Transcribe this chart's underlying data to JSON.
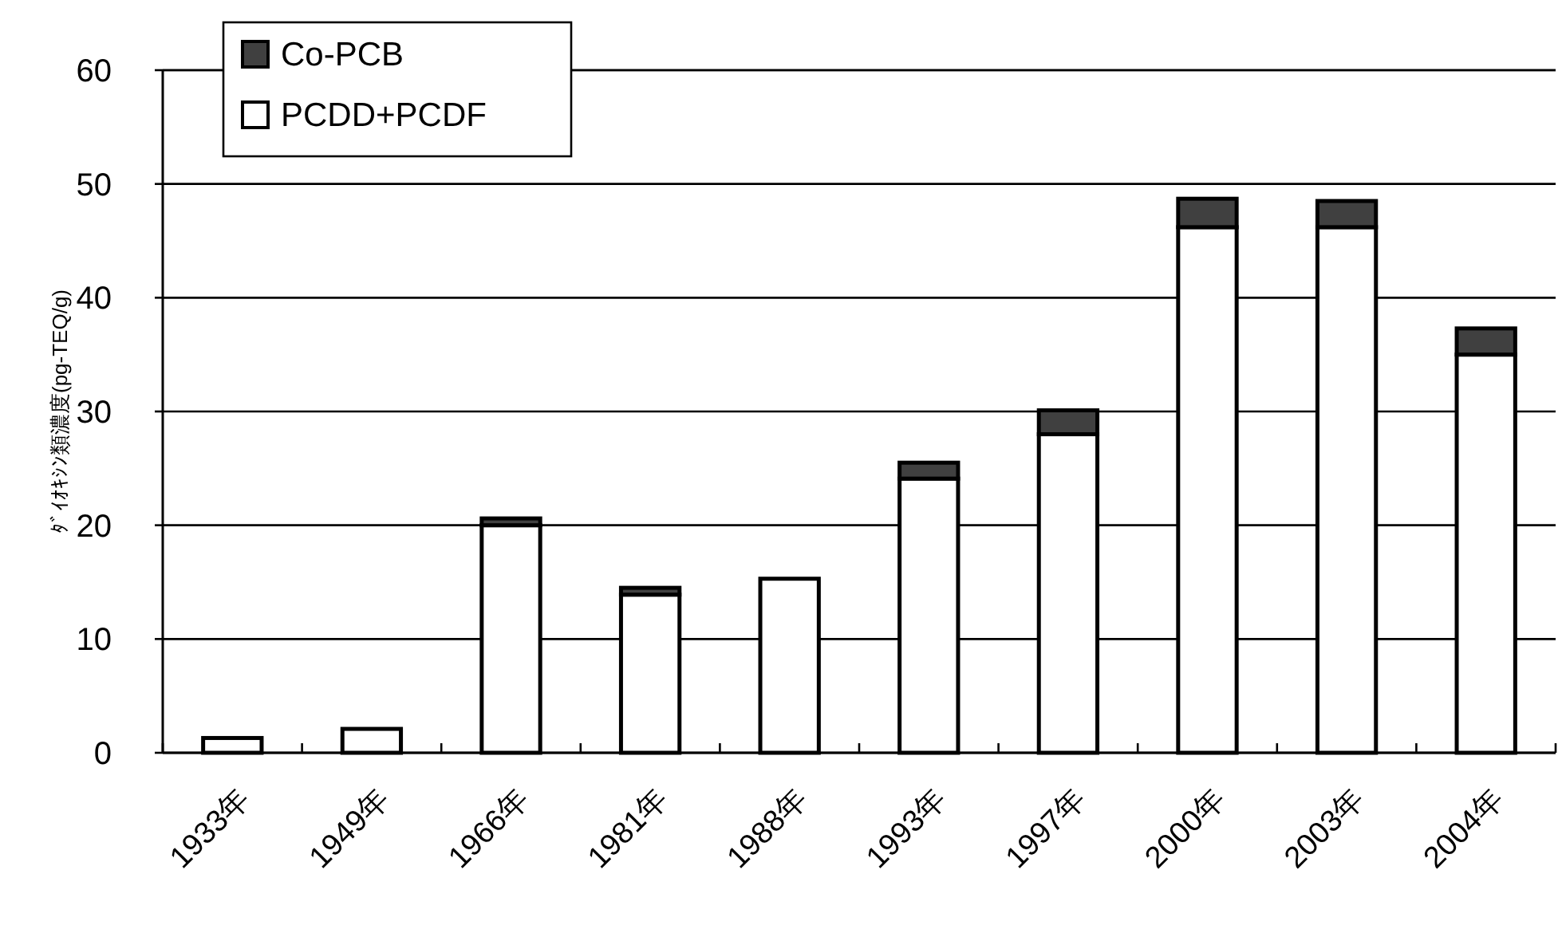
{
  "chart_data": {
    "type": "bar",
    "stacked": true,
    "ylabel": "ﾀﾞｲｵｷｼﾝ類濃度(pg-TEQ/g)",
    "categories": [
      "1933年",
      "1949年",
      "1966年",
      "1981年",
      "1988年",
      "1993年",
      "1997年",
      "2000年",
      "2003年",
      "2004年"
    ],
    "series": [
      {
        "name": "PCDD+PCDF",
        "color": "#ffffff",
        "values": [
          1.3,
          2.1,
          20.0,
          13.9,
          15.3,
          24.1,
          28.0,
          46.2,
          46.2,
          35.0
        ]
      },
      {
        "name": "Co-PCB",
        "color": "#404040",
        "values": [
          0,
          0,
          0.6,
          0.6,
          0,
          1.4,
          2.1,
          2.5,
          2.3,
          2.3
        ]
      }
    ],
    "ylim": [
      0,
      60
    ],
    "yticks": [
      0,
      10,
      20,
      30,
      40,
      50,
      60
    ],
    "grid": "y",
    "legend": "top left"
  }
}
